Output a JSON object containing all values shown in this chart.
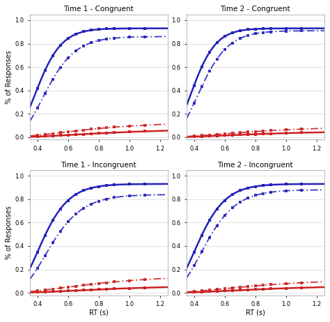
{
  "titles": [
    "Time 1 - Congruent",
    "Time 2 - Congruent",
    "Time 1 - Incongruent",
    "Time 2 - Incongruent"
  ],
  "xlabel": "RT (s)",
  "ylabel": "% of Responses",
  "xlim": [
    0.35,
    1.25
  ],
  "ylim": [
    -0.02,
    1.05
  ],
  "xticks": [
    0.4,
    0.6,
    0.8,
    1.0,
    1.2
  ],
  "yticks": [
    0.0,
    0.2,
    0.4,
    0.6,
    0.8,
    1.0
  ],
  "panels": [
    {
      "blue_solid": {
        "mu": -0.88,
        "sigma": 0.28,
        "scale": 0.93
      },
      "blue_dash": {
        "mu": -0.75,
        "sigma": 0.3,
        "scale": 0.86
      },
      "red_solid": {
        "mu": -0.15,
        "sigma": 0.55,
        "scale": 0.075
      },
      "red_dash": {
        "mu": -0.3,
        "sigma": 0.55,
        "scale": 0.135
      }
    },
    {
      "blue_solid": {
        "mu": -0.9,
        "sigma": 0.27,
        "scale": 0.93
      },
      "blue_dash": {
        "mu": -0.78,
        "sigma": 0.29,
        "scale": 0.91
      },
      "red_solid": {
        "mu": -0.2,
        "sigma": 0.55,
        "scale": 0.055
      },
      "red_dash": {
        "mu": -0.25,
        "sigma": 0.55,
        "scale": 0.095
      }
    },
    {
      "blue_solid": {
        "mu": -0.82,
        "sigma": 0.3,
        "scale": 0.93
      },
      "blue_dash": {
        "mu": -0.7,
        "sigma": 0.32,
        "scale": 0.84
      },
      "red_solid": {
        "mu": -0.15,
        "sigma": 0.55,
        "scale": 0.065
      },
      "red_dash": {
        "mu": -0.25,
        "sigma": 0.55,
        "scale": 0.155
      }
    },
    {
      "blue_solid": {
        "mu": -0.82,
        "sigma": 0.3,
        "scale": 0.93
      },
      "blue_dash": {
        "mu": -0.72,
        "sigma": 0.31,
        "scale": 0.88
      },
      "red_solid": {
        "mu": -0.15,
        "sigma": 0.55,
        "scale": 0.065
      },
      "red_dash": {
        "mu": -0.22,
        "sigma": 0.55,
        "scale": 0.12
      }
    }
  ],
  "marker_x": [
    0.4,
    0.45,
    0.5,
    0.55,
    0.6,
    0.65,
    0.7,
    0.75,
    0.8,
    0.85,
    0.9,
    1.0,
    1.1
  ],
  "blue_color": "#2222bb",
  "red_color": "#cc2222",
  "bg_color": "#ffffff",
  "title_fontsize": 7.5,
  "label_fontsize": 7,
  "tick_fontsize": 6
}
